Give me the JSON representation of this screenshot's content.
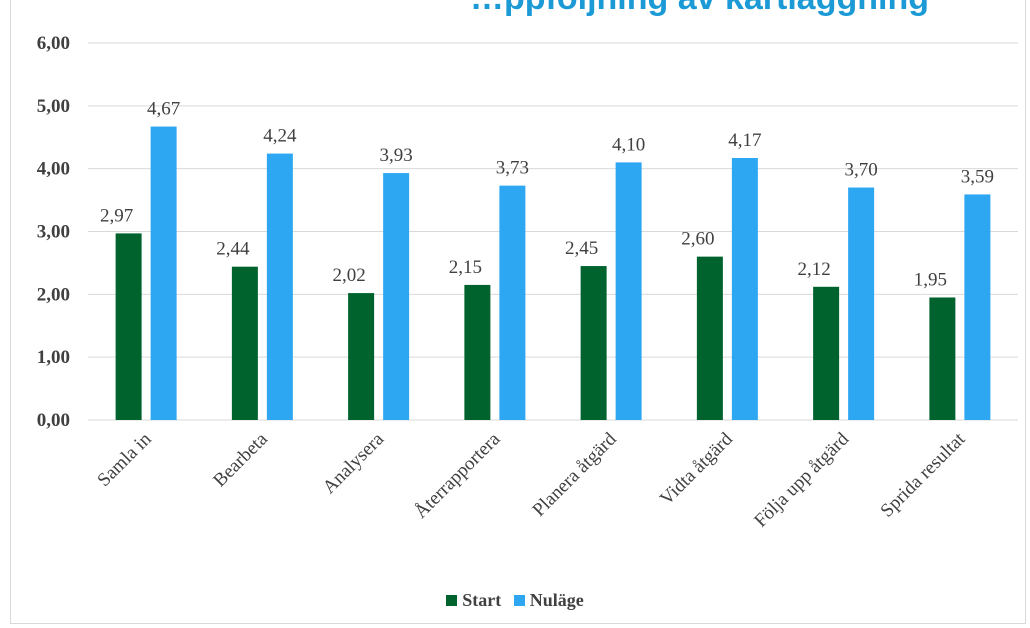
{
  "chart_data": {
    "type": "bar",
    "title": "…ppföljning av kartläggning",
    "categories": [
      "Samla in",
      "Bearbeta",
      "Analysera",
      "Återrapportera",
      "Planera åtgärd",
      "Vidta åtgärd",
      "Följa upp åtgärd",
      "Sprida resultat"
    ],
    "series": [
      {
        "name": "Start",
        "values": [
          2.97,
          2.44,
          2.02,
          2.15,
          2.45,
          2.6,
          2.12,
          1.95
        ],
        "labels": [
          "2,97",
          "2,44",
          "2,02",
          "2,15",
          "2,45",
          "2,60",
          "2,12",
          "1,95"
        ],
        "color": "#00632e"
      },
      {
        "name": "Nuläge",
        "values": [
          4.67,
          4.24,
          3.93,
          3.73,
          4.1,
          4.17,
          3.7,
          3.59
        ],
        "labels": [
          "4,67",
          "4,24",
          "3,93",
          "3,73",
          "4,10",
          "4,17",
          "3,70",
          "3,59"
        ],
        "color": "#2ea7f2"
      }
    ],
    "yticks": [
      "0,00",
      "1,00",
      "2,00",
      "3,00",
      "4,00",
      "5,00",
      "6,00"
    ],
    "ylim": [
      0,
      6
    ],
    "xlabel": "",
    "ylabel": "",
    "grid": true,
    "legend_position": "bottom"
  }
}
